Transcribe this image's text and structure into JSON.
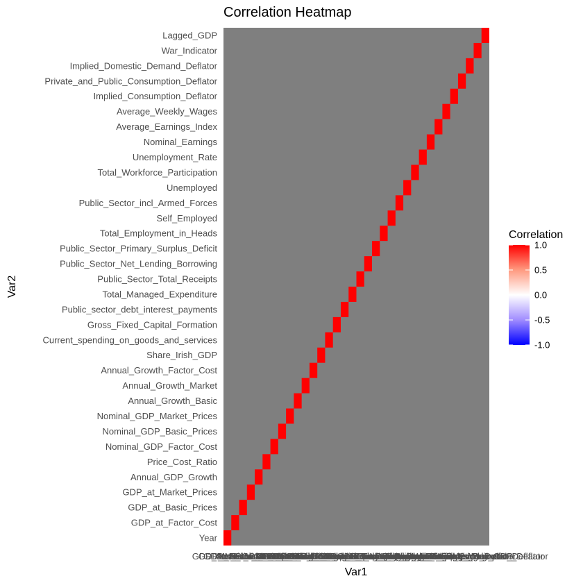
{
  "chart_data": {
    "type": "heatmap",
    "title": "Correlation Heatmap",
    "xlabel": "Var1",
    "ylabel": "Var2",
    "variables": [
      "Year",
      "GDP_at_Factor_Cost",
      "GDP_at_Basic_Prices",
      "GDP_at_Market_Prices",
      "Annual_GDP_Growth",
      "Price_Cost_Ratio",
      "Nominal_GDP_Factor_Cost",
      "Nominal_GDP_Basic_Prices",
      "Nominal_GDP_Market_Prices",
      "Annual_Growth_Basic",
      "Annual_Growth_Market",
      "Annual_Growth_Factor_Cost",
      "Share_Irish_GDP",
      "Current_spending_on_goods_and_services",
      "Gross_Fixed_Capital_Formation",
      "Public_sector_debt_interest_payments",
      "Total_Managed_Expenditure",
      "Public_Sector_Total_Receipts",
      "Public_Sector_Net_Lending_Borrowing",
      "Public_Sector_Primary_Surplus_Deficit",
      "Total_Employment_in_Heads",
      "Self_Employed",
      "Public_Sector_incl_Armed_Forces",
      "Unemployed",
      "Total_Workforce_Participation",
      "Unemployment_Rate",
      "Nominal_Earnings",
      "Average_Earnings_Index",
      "Average_Weekly_Wages",
      "Implied_Consumption_Deflator",
      "Private_and_Public_Consumption_Deflator",
      "Implied_Domestic_Demand_Deflator",
      "War_Indicator",
      "Lagged_GDP"
    ],
    "diagonal_value": 1.0,
    "missing_color": "#7f7f7f",
    "legend": {
      "title": "Correlation",
      "ticks": [
        "1.0",
        "0.5",
        "0.0",
        "-0.5",
        "-1.0"
      ],
      "low_color": "#0000ff",
      "mid_color": "#ffffff",
      "high_color": "#ff0000",
      "range": [
        -1.0,
        1.0
      ],
      "position": "right"
    },
    "grid": false
  }
}
